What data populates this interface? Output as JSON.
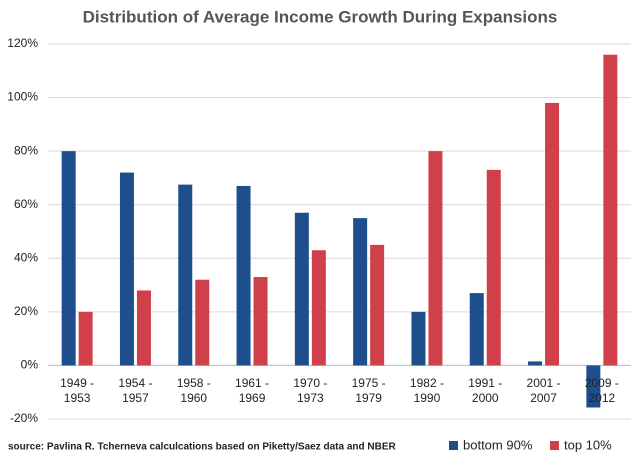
{
  "chart_data": {
    "type": "bar",
    "title": "Distribution of Average Income Growth During Expansions",
    "source": "source: Pavlina R. Tcherneva calculcations based on Piketty/Saez data and NBER",
    "categories": [
      "1949 - 1953",
      "1954 - 1957",
      "1958 - 1960",
      "1961 - 1969",
      "1970 - 1973",
      "1975 - 1979",
      "1982 - 1990",
      "1991 - 2000",
      "2001 - 2007",
      "2009 - 2012"
    ],
    "series": [
      {
        "name": "bottom 90%",
        "color": "#1f4e8c",
        "values": [
          80,
          72,
          67.5,
          67,
          57,
          55,
          20,
          27,
          1.5,
          -15.7
        ]
      },
      {
        "name": "top 10%",
        "color": "#d0404b",
        "values": [
          20,
          28,
          32,
          33,
          43,
          45,
          80,
          73,
          98,
          116
        ]
      }
    ],
    "ylim": [
      -20,
      120
    ],
    "yticks": [
      {
        "value": -20,
        "label": "-20%"
      },
      {
        "value": 0,
        "label": "0%"
      },
      {
        "value": 20,
        "label": "20%"
      },
      {
        "value": 40,
        "label": "40%"
      },
      {
        "value": 60,
        "label": "60%"
      },
      {
        "value": 80,
        "label": "80%"
      },
      {
        "value": 100,
        "label": "100%"
      },
      {
        "value": 120,
        "label": "120%"
      }
    ],
    "grid": true,
    "legend": "bottom-right"
  }
}
